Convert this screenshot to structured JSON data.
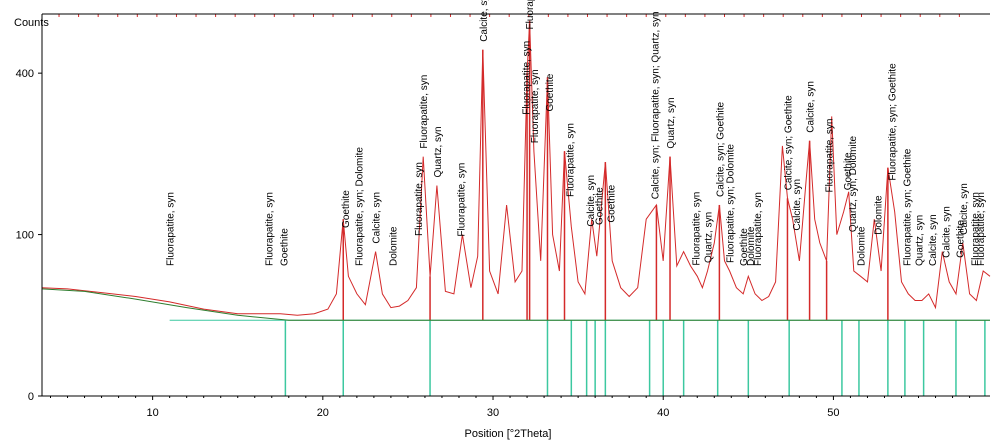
{
  "chart_data": {
    "type": "line",
    "title": "",
    "xlabel": "Position [°2Theta]",
    "ylabel": "Counts",
    "xlim": [
      3.5,
      59.2
    ],
    "ylim": [
      0,
      560
    ],
    "y_scale": "sqrt",
    "x_ticks": [
      "10",
      "20",
      "30",
      "40",
      "50"
    ],
    "x_tick_values": [
      10,
      20,
      30,
      40,
      50
    ],
    "y_ticks": [
      "0",
      "100",
      "400"
    ],
    "y_tick_values": [
      0,
      100,
      400
    ],
    "grid": false,
    "colors": {
      "pattern": "#d42a2a",
      "background_fit": "#2e7d2e",
      "reference_sticks": "#3cc8a0",
      "peak_sticks": "#d42a2a"
    },
    "series": [
      {
        "role": "observed-pattern",
        "x": [
          3.5,
          5,
          7,
          9,
          11,
          13,
          15,
          16.5,
          17.5,
          18.5,
          19.5,
          20.3,
          20.8,
          21.2,
          21.5,
          22,
          22.5,
          23.1,
          23.5,
          24,
          24.5,
          25,
          25.5,
          25.9,
          26.3,
          26.7,
          27.2,
          27.7,
          28.2,
          28.7,
          29.1,
          29.4,
          29.8,
          30.3,
          30.8,
          31.3,
          31.7,
          32.0,
          32.15,
          32.4,
          32.8,
          33.2,
          33.5,
          33.9,
          34.2,
          34.6,
          35.0,
          35.4,
          35.8,
          36.1,
          36.6,
          37.0,
          37.5,
          38.0,
          38.5,
          39.0,
          39.6,
          40.0,
          40.4,
          40.8,
          41.2,
          41.6,
          42.0,
          42.3,
          42.6,
          43.0,
          43.3,
          43.6,
          43.9,
          44.3,
          44.7,
          45.0,
          45.4,
          45.8,
          46.2,
          46.6,
          47.0,
          47.3,
          47.6,
          48.0,
          48.4,
          48.6,
          48.9,
          49.2,
          49.6,
          49.9,
          50.2,
          50.6,
          50.9,
          51.2,
          51.6,
          52.0,
          52.4,
          52.8,
          53.2,
          53.6,
          54.0,
          54.4,
          54.8,
          55.2,
          55.6,
          56.0,
          56.4,
          56.8,
          57.2,
          57.6,
          58.0,
          58.4,
          58.8,
          59.2
        ],
        "y": [
          45,
          44,
          41,
          38,
          34,
          29,
          26,
          26,
          26,
          25,
          26,
          29,
          40,
          120,
          55,
          40,
          32,
          80,
          40,
          30,
          31,
          35,
          45,
          220,
          55,
          170,
          42,
          40,
          100,
          45,
          75,
          460,
          60,
          40,
          140,
          50,
          60,
          400,
          540,
          230,
          70,
          390,
          100,
          60,
          230,
          110,
          50,
          40,
          120,
          75,
          210,
          70,
          45,
          38,
          45,
          120,
          140,
          70,
          220,
          65,
          80,
          65,
          55,
          45,
          60,
          90,
          140,
          70,
          60,
          45,
          40,
          55,
          40,
          35,
          38,
          50,
          240,
          150,
          120,
          70,
          180,
          250,
          120,
          90,
          70,
          300,
          100,
          130,
          160,
          60,
          55,
          50,
          120,
          60,
          200,
          130,
          50,
          40,
          35,
          35,
          40,
          30,
          80,
          50,
          40,
          90,
          40,
          35,
          60,
          55
        ]
      },
      {
        "role": "background-fit",
        "x": [
          3.5,
          6,
          9,
          12,
          15,
          18,
          21,
          24,
          27,
          30,
          35,
          40,
          45,
          50,
          55,
          59.2
        ],
        "y": [
          44,
          42,
          36,
          30,
          25,
          22,
          22,
          22,
          22,
          22,
          22,
          22,
          22,
          22,
          22,
          22
        ]
      }
    ],
    "reference_sticks_x": [
      17.8,
      21.2,
      26.3,
      33.2,
      34.6,
      35.5,
      36.0,
      36.6,
      39.2,
      40.0,
      41.2,
      43.2,
      45.0,
      47.4,
      50.5,
      51.5,
      53.2,
      54.2,
      55.3,
      57.2,
      58.9
    ],
    "peak_sticks_x": [
      21.2,
      26.3,
      29.4,
      32.0,
      32.15,
      33.2,
      34.2,
      36.6,
      39.6,
      40.4,
      43.3,
      47.3,
      48.6,
      49.6,
      53.2
    ],
    "peak_labels": [
      {
        "x": 11.0,
        "text": "Fluorapatite, syn"
      },
      {
        "x": 16.8,
        "text": "Fluorapatite, syn"
      },
      {
        "x": 17.7,
        "text": "Goethite"
      },
      {
        "x": 21.3,
        "text": "Goethite"
      },
      {
        "x": 22.1,
        "text": "Fluorapatite, syn; Dolomite"
      },
      {
        "x": 23.1,
        "text": "Calcite, syn"
      },
      {
        "x": 24.1,
        "text": "Dolomite"
      },
      {
        "x": 25.6,
        "text": "Fluorapatite, syn"
      },
      {
        "x": 25.9,
        "text": "Fluorapatite, syn"
      },
      {
        "x": 26.7,
        "text": "Quartz, syn"
      },
      {
        "x": 28.1,
        "text": "Fluorapatite, syn"
      },
      {
        "x": 29.4,
        "text": "Calcite, syn"
      },
      {
        "x": 31.9,
        "text": "Fluorapatite, syn"
      },
      {
        "x": 32.1,
        "text": "Fluorapatite, syn"
      },
      {
        "x": 32.4,
        "text": "Fluorapatite, syn"
      },
      {
        "x": 33.3,
        "text": "Goethite"
      },
      {
        "x": 34.5,
        "text": "Fluorapatite, syn"
      },
      {
        "x": 35.7,
        "text": "Calcite, syn"
      },
      {
        "x": 36.2,
        "text": "Goethite"
      },
      {
        "x": 36.9,
        "text": "Goethite"
      },
      {
        "x": 39.5,
        "text": "Calcite, syn; Fluorapatite, syn; Quartz, syn"
      },
      {
        "x": 40.4,
        "text": "Quartz, syn"
      },
      {
        "x": 41.9,
        "text": "Fluorapatite, syn"
      },
      {
        "x": 42.6,
        "text": "Quartz, syn"
      },
      {
        "x": 43.3,
        "text": "Calcite, syn; Goethite"
      },
      {
        "x": 43.9,
        "text": "Fluorapatite, syn; Dolomite"
      },
      {
        "x": 44.7,
        "text": "Goethite"
      },
      {
        "x": 45.1,
        "text": "Dolomite"
      },
      {
        "x": 45.5,
        "text": "Fluorapatite, syn"
      },
      {
        "x": 47.3,
        "text": "Calcite, syn; Goethite"
      },
      {
        "x": 47.8,
        "text": "Calcite, syn"
      },
      {
        "x": 48.6,
        "text": "Calcite, syn"
      },
      {
        "x": 49.7,
        "text": "Fluorapatite, syn"
      },
      {
        "x": 50.8,
        "text": "Goethite"
      },
      {
        "x": 51.1,
        "text": "Quartz, syn; Dolomite"
      },
      {
        "x": 51.6,
        "text": "Dolomite"
      },
      {
        "x": 52.6,
        "text": "Dolomite"
      },
      {
        "x": 53.4,
        "text": "Fluorapatite, syn; Goethite"
      },
      {
        "x": 54.3,
        "text": "Fluorapatite, syn; Goethite"
      },
      {
        "x": 55.0,
        "text": "Quartz, syn"
      },
      {
        "x": 55.8,
        "text": "Calcite, syn"
      },
      {
        "x": 56.6,
        "text": "Calcite, syn"
      },
      {
        "x": 57.4,
        "text": "Goethite"
      },
      {
        "x": 57.6,
        "text": "Calcite, syn"
      },
      {
        "x": 58.3,
        "text": "Fluorapatite, syn"
      },
      {
        "x": 58.6,
        "text": "Fluorapatite, syn"
      }
    ]
  }
}
